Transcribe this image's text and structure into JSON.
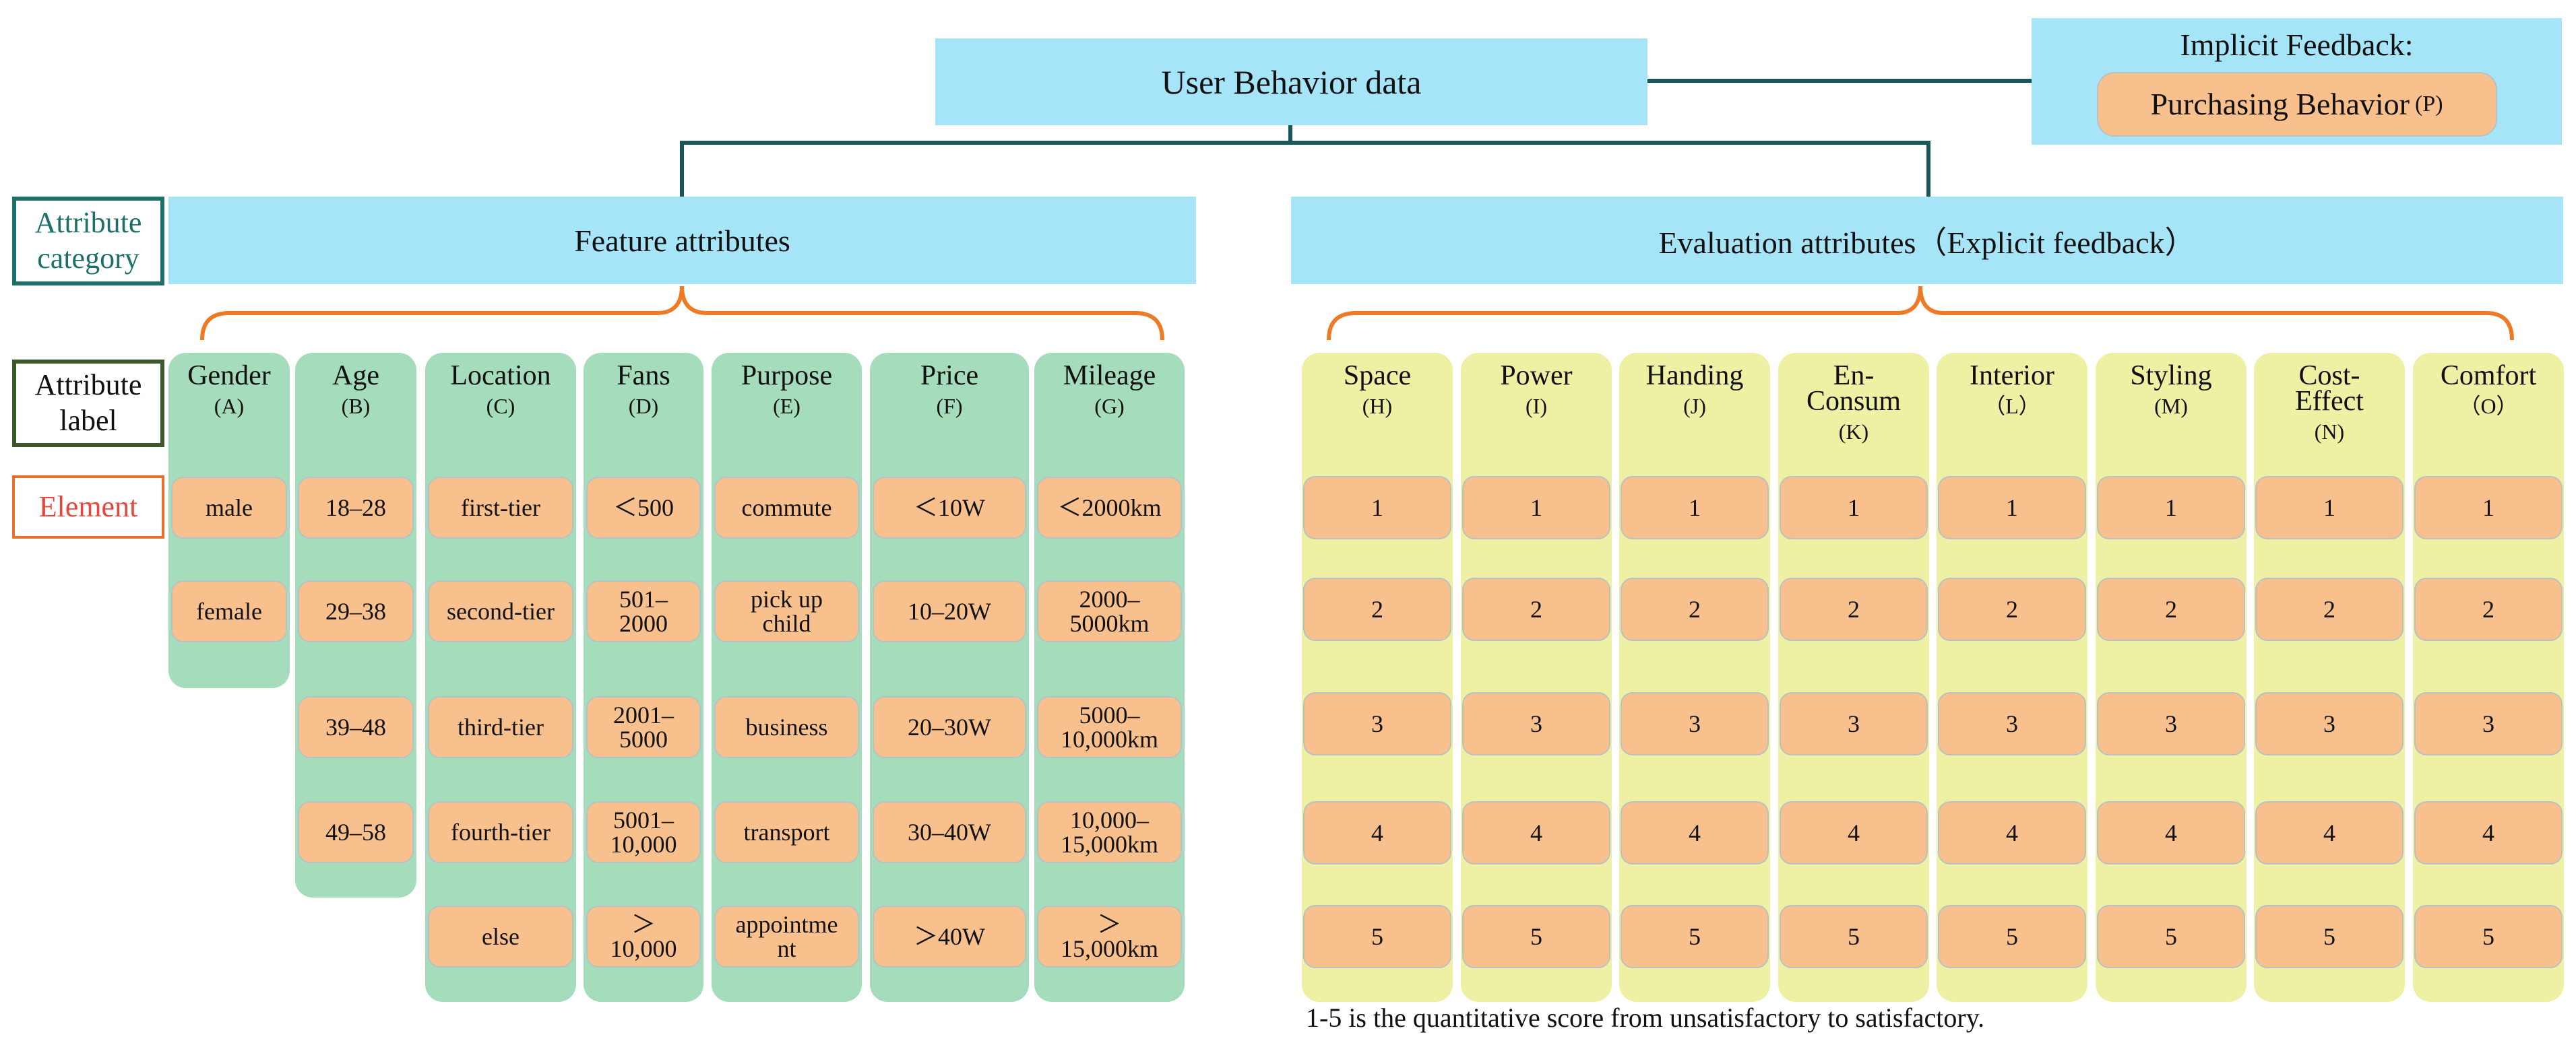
{
  "top": {
    "title": "User Behavior data"
  },
  "implicit": {
    "title": "Implicit Feedback:",
    "chip_label": "Purchasing Behavior",
    "chip_code": "(P)"
  },
  "categories": {
    "feature": "Feature attributes",
    "evaluation": "Evaluation attributes（Explicit feedback）"
  },
  "legend": {
    "category": "Attribute category",
    "label": "Attribute label",
    "element": "Element"
  },
  "colors": {
    "box": "#a6e4f8",
    "green": "#a5dcbb",
    "yellow": "#eef0a3",
    "chip": "#f8c08c",
    "teal": "#1e6f6a",
    "dark_green": "#3f5a2a",
    "orange": "#e8702a",
    "red": "#e8453c",
    "line": "#19585a"
  },
  "feature_columns": [
    {
      "name": "Gender",
      "code": "(A)",
      "elements": [
        "male",
        "female"
      ]
    },
    {
      "name": "Age",
      "code": "(B)",
      "elements": [
        "18–28",
        "29–38",
        "39–48",
        "49–58"
      ]
    },
    {
      "name": "Location",
      "code": "(C)",
      "elements": [
        "first-tier",
        "second-tier",
        "third-tier",
        "fourth-tier",
        "else"
      ]
    },
    {
      "name": "Fans",
      "code": "(D)",
      "elements": [
        "＜500",
        "501–\n2000",
        "2001–\n5000",
        "5001–\n10,000",
        "＞\n10,000"
      ]
    },
    {
      "name": "Purpose",
      "code": "(E)",
      "elements": [
        "commute",
        "pick up\nchild",
        "business",
        "transport",
        "appointme\nnt"
      ]
    },
    {
      "name": "Price",
      "code": "(F)",
      "elements": [
        "＜10W",
        "10–20W",
        "20–30W",
        "30–40W",
        "＞40W"
      ]
    },
    {
      "name": "Mileage",
      "code": "(G)",
      "elements": [
        "＜2000km",
        "2000–\n5000km",
        "5000–\n10,000km",
        "10,000–\n15,000km",
        "＞\n15,000km"
      ]
    }
  ],
  "evaluation_columns": [
    {
      "name": "Space",
      "code": "(H)"
    },
    {
      "name": "Power",
      "code": "(I)"
    },
    {
      "name": "Handing",
      "code": "(J)"
    },
    {
      "name": "En-\nConsum",
      "code": "(K)"
    },
    {
      "name": "Interior",
      "code": "（L）"
    },
    {
      "name": "Styling",
      "code": "(M)"
    },
    {
      "name": "Cost-\nEffect",
      "code": "(N)"
    },
    {
      "name": "Comfort",
      "code": "（O）"
    }
  ],
  "scores": [
    "1",
    "2",
    "3",
    "4",
    "5"
  ],
  "note": "1-5 is the quantitative score from unsatisfactory to satisfactory."
}
